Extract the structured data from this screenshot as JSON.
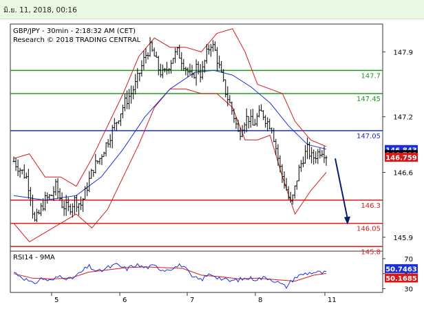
{
  "banner": {
    "datetime": "มิ.ย. 11, 2018, 00:16"
  },
  "chart_data": {
    "type": "candlestick",
    "title": "GBP/JPY - 30min - 2:18:32 AM (CET)",
    "subtitle": "Research © 2018 TRADING CENTRAL",
    "ylim": [
      145.75,
      148.2
    ],
    "y_ticks": [
      147.9,
      147.2,
      146.6,
      145.9
    ],
    "x_ticks": [
      "5",
      "6",
      "7",
      "8",
      "11"
    ],
    "levels": [
      {
        "label": "147.7",
        "value": 147.7,
        "color": "#1e9b1e"
      },
      {
        "label": "147.45",
        "value": 147.45,
        "color": "#1e9b1e"
      },
      {
        "label": "147.05",
        "value": 147.05,
        "color": "#1c2fd8"
      },
      {
        "label": "146.3",
        "value": 146.3,
        "color": "#e01818"
      },
      {
        "label": "146.05",
        "value": 146.05,
        "color": "#e01818"
      },
      {
        "label": "145.8",
        "value": 145.8,
        "color": "#e01818"
      }
    ],
    "price_tags": [
      {
        "label": "146.843",
        "value": 146.843,
        "bg": "#1c2fd8"
      },
      {
        "label": "146.788",
        "value": 146.788,
        "bg": "#000000"
      },
      {
        "label": "146.759",
        "value": 146.759,
        "bg": "#d81818"
      }
    ],
    "price_path": [
      {
        "x": 0,
        "y": 146.72
      },
      {
        "x": 0.04,
        "y": 146.55
      },
      {
        "x": 0.055,
        "y": 146.35
      },
      {
        "x": 0.065,
        "y": 146.05
      },
      {
        "x": 0.08,
        "y": 146.15
      },
      {
        "x": 0.1,
        "y": 146.3
      },
      {
        "x": 0.12,
        "y": 146.35
      },
      {
        "x": 0.135,
        "y": 146.45
      },
      {
        "x": 0.155,
        "y": 146.25
      },
      {
        "x": 0.175,
        "y": 146.2
      },
      {
        "x": 0.195,
        "y": 146.3
      },
      {
        "x": 0.215,
        "y": 146.25
      },
      {
        "x": 0.235,
        "y": 146.45
      },
      {
        "x": 0.255,
        "y": 146.65
      },
      {
        "x": 0.275,
        "y": 146.75
      },
      {
        "x": 0.295,
        "y": 146.9
      },
      {
        "x": 0.315,
        "y": 147.05
      },
      {
        "x": 0.335,
        "y": 147.2
      },
      {
        "x": 0.355,
        "y": 147.35
      },
      {
        "x": 0.375,
        "y": 147.45
      },
      {
        "x": 0.39,
        "y": 147.55
      },
      {
        "x": 0.405,
        "y": 147.7
      },
      {
        "x": 0.42,
        "y": 147.85
      },
      {
        "x": 0.435,
        "y": 147.95
      },
      {
        "x": 0.45,
        "y": 147.85
      },
      {
        "x": 0.465,
        "y": 147.7
      },
      {
        "x": 0.48,
        "y": 147.65
      },
      {
        "x": 0.495,
        "y": 147.75
      },
      {
        "x": 0.51,
        "y": 147.85
      },
      {
        "x": 0.525,
        "y": 147.9
      },
      {
        "x": 0.54,
        "y": 147.8
      },
      {
        "x": 0.555,
        "y": 147.7
      },
      {
        "x": 0.57,
        "y": 147.6
      },
      {
        "x": 0.585,
        "y": 147.75
      },
      {
        "x": 0.6,
        "y": 147.65
      },
      {
        "x": 0.615,
        "y": 147.85
      },
      {
        "x": 0.63,
        "y": 148.0
      },
      {
        "x": 0.645,
        "y": 147.9
      },
      {
        "x": 0.66,
        "y": 147.7
      },
      {
        "x": 0.675,
        "y": 147.5
      },
      {
        "x": 0.69,
        "y": 147.35
      },
      {
        "x": 0.705,
        "y": 147.2
      },
      {
        "x": 0.72,
        "y": 147.0
      },
      {
        "x": 0.735,
        "y": 147.15
      },
      {
        "x": 0.75,
        "y": 147.2
      },
      {
        "x": 0.765,
        "y": 147.1
      },
      {
        "x": 0.78,
        "y": 147.2
      },
      {
        "x": 0.795,
        "y": 147.25
      },
      {
        "x": 0.81,
        "y": 147.15
      },
      {
        "x": 0.825,
        "y": 147.1
      },
      {
        "x": 0.84,
        "y": 146.85
      },
      {
        "x": 0.855,
        "y": 146.6
      },
      {
        "x": 0.87,
        "y": 146.45
      },
      {
        "x": 0.885,
        "y": 146.25
      },
      {
        "x": 0.895,
        "y": 146.35
      },
      {
        "x": 0.91,
        "y": 146.6
      },
      {
        "x": 0.925,
        "y": 146.75
      },
      {
        "x": 0.94,
        "y": 146.85
      },
      {
        "x": 0.955,
        "y": 146.75
      },
      {
        "x": 0.97,
        "y": 146.8
      },
      {
        "x": 0.985,
        "y": 146.85
      },
      {
        "x": 1,
        "y": 146.79
      }
    ],
    "ma_path": [
      {
        "x": 0,
        "y": 146.35
      },
      {
        "x": 0.1,
        "y": 146.3
      },
      {
        "x": 0.2,
        "y": 146.35
      },
      {
        "x": 0.28,
        "y": 146.55
      },
      {
        "x": 0.35,
        "y": 146.85
      },
      {
        "x": 0.42,
        "y": 147.2
      },
      {
        "x": 0.5,
        "y": 147.5
      },
      {
        "x": 0.58,
        "y": 147.68
      },
      {
        "x": 0.64,
        "y": 147.7
      },
      {
        "x": 0.7,
        "y": 147.65
      },
      {
        "x": 0.76,
        "y": 147.52
      },
      {
        "x": 0.82,
        "y": 147.35
      },
      {
        "x": 0.88,
        "y": 147.1
      },
      {
        "x": 0.94,
        "y": 146.9
      },
      {
        "x": 1,
        "y": 146.85
      }
    ],
    "bb_upper_path": [
      {
        "x": 0,
        "y": 146.75
      },
      {
        "x": 0.05,
        "y": 146.8
      },
      {
        "x": 0.1,
        "y": 146.55
      },
      {
        "x": 0.15,
        "y": 146.55
      },
      {
        "x": 0.2,
        "y": 146.45
      },
      {
        "x": 0.25,
        "y": 146.75
      },
      {
        "x": 0.3,
        "y": 147.1
      },
      {
        "x": 0.35,
        "y": 147.45
      },
      {
        "x": 0.4,
        "y": 147.85
      },
      {
        "x": 0.45,
        "y": 148.05
      },
      {
        "x": 0.5,
        "y": 147.95
      },
      {
        "x": 0.55,
        "y": 147.95
      },
      {
        "x": 0.6,
        "y": 147.9
      },
      {
        "x": 0.65,
        "y": 148.1
      },
      {
        "x": 0.7,
        "y": 148.15
      },
      {
        "x": 0.74,
        "y": 147.9
      },
      {
        "x": 0.78,
        "y": 147.55
      },
      {
        "x": 0.82,
        "y": 147.5
      },
      {
        "x": 0.86,
        "y": 147.45
      },
      {
        "x": 0.9,
        "y": 147.15
      },
      {
        "x": 0.95,
        "y": 146.95
      },
      {
        "x": 1,
        "y": 146.88
      }
    ],
    "bb_lower_path": [
      {
        "x": 0,
        "y": 146.05
      },
      {
        "x": 0.05,
        "y": 145.85
      },
      {
        "x": 0.1,
        "y": 145.95
      },
      {
        "x": 0.15,
        "y": 146.05
      },
      {
        "x": 0.2,
        "y": 146.15
      },
      {
        "x": 0.25,
        "y": 146.0
      },
      {
        "x": 0.3,
        "y": 146.2
      },
      {
        "x": 0.35,
        "y": 146.55
      },
      {
        "x": 0.4,
        "y": 146.9
      },
      {
        "x": 0.45,
        "y": 147.3
      },
      {
        "x": 0.5,
        "y": 147.5
      },
      {
        "x": 0.55,
        "y": 147.5
      },
      {
        "x": 0.6,
        "y": 147.45
      },
      {
        "x": 0.65,
        "y": 147.45
      },
      {
        "x": 0.7,
        "y": 147.3
      },
      {
        "x": 0.74,
        "y": 146.95
      },
      {
        "x": 0.78,
        "y": 146.95
      },
      {
        "x": 0.82,
        "y": 147.0
      },
      {
        "x": 0.86,
        "y": 146.55
      },
      {
        "x": 0.9,
        "y": 146.15
      },
      {
        "x": 0.95,
        "y": 146.4
      },
      {
        "x": 1,
        "y": 146.6
      }
    ],
    "forecast": {
      "from": 146.75,
      "to": 146.05
    },
    "rsi": {
      "label": "RSI14 - 9MA",
      "ylim": [
        25,
        80
      ],
      "ticks": [
        70,
        50,
        30
      ],
      "tags": [
        {
          "label": "50.7463",
          "value": 50.7463,
          "bg": "#1c2fd8"
        },
        {
          "label": "50.1685",
          "value": 50.1685,
          "bg": "#d81818"
        }
      ],
      "rsi_path": [
        {
          "x": 0,
          "y": 52
        },
        {
          "x": 0.03,
          "y": 45
        },
        {
          "x": 0.06,
          "y": 36
        },
        {
          "x": 0.09,
          "y": 44
        },
        {
          "x": 0.12,
          "y": 40
        },
        {
          "x": 0.15,
          "y": 48
        },
        {
          "x": 0.18,
          "y": 42
        },
        {
          "x": 0.21,
          "y": 50
        },
        {
          "x": 0.24,
          "y": 60
        },
        {
          "x": 0.27,
          "y": 52
        },
        {
          "x": 0.3,
          "y": 58
        },
        {
          "x": 0.33,
          "y": 62
        },
        {
          "x": 0.36,
          "y": 56
        },
        {
          "x": 0.39,
          "y": 62
        },
        {
          "x": 0.42,
          "y": 58
        },
        {
          "x": 0.45,
          "y": 60
        },
        {
          "x": 0.48,
          "y": 55
        },
        {
          "x": 0.51,
          "y": 58
        },
        {
          "x": 0.54,
          "y": 62
        },
        {
          "x": 0.57,
          "y": 45
        },
        {
          "x": 0.6,
          "y": 42
        },
        {
          "x": 0.63,
          "y": 50
        },
        {
          "x": 0.66,
          "y": 44
        },
        {
          "x": 0.69,
          "y": 40
        },
        {
          "x": 0.72,
          "y": 42
        },
        {
          "x": 0.75,
          "y": 44
        },
        {
          "x": 0.78,
          "y": 43
        },
        {
          "x": 0.81,
          "y": 45
        },
        {
          "x": 0.84,
          "y": 40
        },
        {
          "x": 0.87,
          "y": 32
        },
        {
          "x": 0.9,
          "y": 45
        },
        {
          "x": 0.93,
          "y": 50
        },
        {
          "x": 0.96,
          "y": 52
        },
        {
          "x": 1,
          "y": 50.75
        }
      ],
      "ma_path": [
        {
          "x": 0,
          "y": 50
        },
        {
          "x": 0.06,
          "y": 44
        },
        {
          "x": 0.12,
          "y": 43
        },
        {
          "x": 0.18,
          "y": 44
        },
        {
          "x": 0.24,
          "y": 52
        },
        {
          "x": 0.3,
          "y": 55
        },
        {
          "x": 0.36,
          "y": 58
        },
        {
          "x": 0.42,
          "y": 59
        },
        {
          "x": 0.48,
          "y": 58
        },
        {
          "x": 0.54,
          "y": 57
        },
        {
          "x": 0.6,
          "y": 48
        },
        {
          "x": 0.66,
          "y": 46
        },
        {
          "x": 0.72,
          "y": 43
        },
        {
          "x": 0.78,
          "y": 44
        },
        {
          "x": 0.84,
          "y": 42
        },
        {
          "x": 0.9,
          "y": 40
        },
        {
          "x": 0.96,
          "y": 48
        },
        {
          "x": 1,
          "y": 50.17
        }
      ]
    }
  }
}
